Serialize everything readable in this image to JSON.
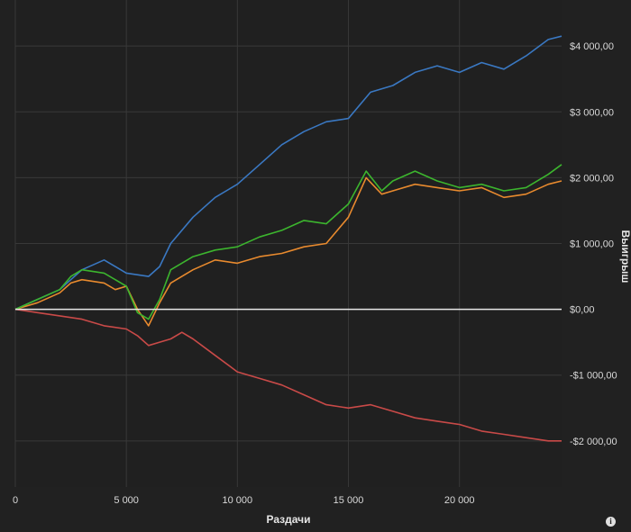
{
  "chart_data": {
    "type": "line",
    "xlabel": "Раздачи",
    "ylabel": "Выигрыш",
    "xlim": [
      0,
      24600
    ],
    "ylim": [
      -2700,
      4700
    ],
    "x_ticks": [
      0,
      5000,
      10000,
      15000,
      20000
    ],
    "x_tick_labels": [
      "0",
      "5 000",
      "10 000",
      "15 000",
      "20 000"
    ],
    "y_ticks": [
      4000,
      3000,
      2000,
      1000,
      0,
      -1000,
      -2000
    ],
    "y_tick_labels": [
      "$4 000,00",
      "$3 000,00",
      "$2 000,00",
      "$1 000,00",
      "$0,00",
      "-$1 000,00",
      "-$2 000,00"
    ],
    "grid": true,
    "series": [
      {
        "color": "#3a78c2",
        "x": [
          0,
          1000,
          2000,
          3000,
          4000,
          5000,
          6000,
          6500,
          7000,
          8000,
          9000,
          10000,
          11000,
          12000,
          13000,
          14000,
          15000,
          16000,
          17000,
          18000,
          19000,
          20000,
          21000,
          22000,
          23000,
          24000,
          24600
        ],
        "y": [
          0,
          150,
          300,
          600,
          750,
          550,
          500,
          650,
          1000,
          1400,
          1700,
          1900,
          2200,
          2500,
          2700,
          2850,
          2900,
          3300,
          3400,
          3600,
          3700,
          3600,
          3750,
          3650,
          3850,
          4100,
          4150
        ]
      },
      {
        "color": "#e88a2e",
        "x": [
          0,
          1000,
          2000,
          2500,
          3000,
          4000,
          4500,
          5000,
          5500,
          6000,
          6500,
          7000,
          8000,
          9000,
          10000,
          11000,
          12000,
          13000,
          14000,
          15000,
          15800,
          16500,
          17000,
          18000,
          19000,
          20000,
          21000,
          22000,
          23000,
          24000,
          24600
        ],
        "y": [
          0,
          100,
          250,
          400,
          450,
          400,
          300,
          350,
          0,
          -250,
          100,
          400,
          600,
          750,
          700,
          800,
          850,
          950,
          1000,
          1400,
          2000,
          1750,
          1800,
          1900,
          1850,
          1800,
          1850,
          1700,
          1750,
          1900,
          1950
        ]
      },
      {
        "color": "#3cb52e",
        "x": [
          0,
          1000,
          2000,
          2500,
          3000,
          4000,
          4500,
          5000,
          5500,
          6000,
          6500,
          7000,
          8000,
          9000,
          10000,
          11000,
          12000,
          13000,
          14000,
          15000,
          15800,
          16500,
          17000,
          18000,
          19000,
          20000,
          21000,
          22000,
          23000,
          24000,
          24600
        ],
        "y": [
          0,
          150,
          300,
          500,
          600,
          550,
          450,
          350,
          -50,
          -150,
          150,
          600,
          800,
          900,
          950,
          1100,
          1200,
          1350,
          1300,
          1600,
          2100,
          1800,
          1950,
          2100,
          1950,
          1850,
          1900,
          1800,
          1850,
          2050,
          2200
        ]
      },
      {
        "color": "#c94a48",
        "x": [
          0,
          1000,
          2000,
          3000,
          4000,
          5000,
          5500,
          6000,
          7000,
          7500,
          8000,
          9000,
          10000,
          11000,
          12000,
          13000,
          14000,
          15000,
          16000,
          17000,
          18000,
          19000,
          20000,
          21000,
          22000,
          23000,
          24000,
          24600
        ],
        "y": [
          0,
          -50,
          -100,
          -150,
          -250,
          -300,
          -400,
          -550,
          -450,
          -350,
          -450,
          -700,
          -950,
          -1050,
          -1150,
          -1300,
          -1450,
          -1500,
          -1450,
          -1550,
          -1650,
          -1700,
          -1750,
          -1850,
          -1900,
          -1950,
          -2000,
          -2000
        ]
      }
    ]
  }
}
